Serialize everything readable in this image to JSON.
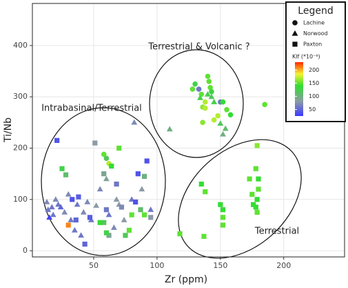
{
  "chart_data": {
    "type": "scatter",
    "x_label": "Zr (ppm)",
    "y_label": "Ti/Nb",
    "xlim": [
      1.6,
      248
    ],
    "ylim": [
      -12,
      482
    ],
    "xticks": [
      50,
      100,
      150,
      200
    ],
    "yticks": [
      0,
      100,
      200,
      300,
      400
    ],
    "grid": true,
    "annotations": [
      "Terrestrial & Volcanic ?",
      "Intrabasinal/Terrestrial",
      "Terrestrial"
    ],
    "legend": {
      "title": "Legend",
      "corner": "top-right"
    },
    "colorbar": {
      "title": "Klf (*10⁻⁶)",
      "lim": [
        25,
        230
      ],
      "ticks": [
        50,
        100,
        150,
        200
      ],
      "stops": [
        {
          "value": 25,
          "color": "#3a3aff"
        },
        {
          "value": 80,
          "color": "#8c9aa6"
        },
        {
          "value": 140,
          "color": "#33dd33"
        },
        {
          "value": 185,
          "color": "#f4f433"
        },
        {
          "value": 230,
          "color": "#ff2a00"
        }
      ]
    },
    "series": [
      {
        "name": "Lachine",
        "shape": "circle",
        "x": [
          58,
          62,
          60,
          130,
          133,
          135,
          136,
          138,
          140,
          141,
          142,
          143,
          145,
          148,
          150,
          152,
          155,
          158,
          185,
          128,
          136,
          138
        ],
        "values": [
          188,
          170,
          180,
          325,
          315,
          305,
          280,
          290,
          340,
          330,
          318,
          310,
          255,
          263,
          290,
          290,
          275,
          265,
          285,
          315,
          250,
          278
        ],
        "klf": [
          150,
          170,
          120,
          130,
          60,
          150,
          160,
          170,
          150,
          150,
          150,
          130,
          170,
          170,
          60,
          140,
          150,
          140,
          150,
          150,
          160,
          170
        ]
      },
      {
        "name": "Norwood",
        "shape": "triangle",
        "x": [
          13,
          14,
          15,
          17,
          18,
          20,
          22,
          24,
          27,
          30,
          32,
          35,
          37,
          40,
          42,
          45,
          48,
          52,
          55,
          60,
          62,
          66,
          68,
          70,
          74,
          80,
          82,
          88,
          95,
          110,
          140,
          143,
          145,
          150,
          152,
          154,
          134
        ],
        "values": [
          95,
          80,
          65,
          85,
          70,
          100,
          90,
          85,
          75,
          110,
          60,
          40,
          90,
          30,
          75,
          95,
          60,
          88,
          120,
          140,
          70,
          45,
          100,
          90,
          60,
          100,
          250,
          120,
          80,
          237,
          305,
          300,
          290,
          248,
          227,
          238,
          298
        ],
        "klf": [
          70,
          60,
          30,
          60,
          60,
          70,
          60,
          50,
          70,
          70,
          60,
          60,
          60,
          60,
          70,
          70,
          60,
          80,
          70,
          90,
          60,
          70,
          80,
          80,
          80,
          60,
          70,
          80,
          60,
          100,
          130,
          120,
          130,
          120,
          100,
          110,
          130
        ]
      },
      {
        "name": "Paxton",
        "shape": "square",
        "x": [
          21,
          25,
          28,
          30,
          33,
          38,
          36,
          43,
          47,
          51,
          55,
          58,
          60,
          62,
          64,
          68,
          70,
          72,
          75,
          78,
          80,
          83,
          85,
          87,
          90,
          90,
          92,
          95,
          60,
          58,
          118,
          135,
          137,
          138,
          150,
          152,
          152,
          152,
          173,
          175,
          176,
          178,
          178,
          179,
          180,
          179,
          180,
          179
        ],
        "values": [
          215,
          160,
          148,
          50,
          100,
          105,
          60,
          13,
          65,
          210,
          55,
          150,
          80,
          30,
          165,
          130,
          200,
          85,
          30,
          40,
          70,
          95,
          150,
          80,
          145,
          70,
          175,
          65,
          35,
          55,
          33,
          130,
          28,
          115,
          90,
          80,
          50,
          65,
          140,
          110,
          90,
          85,
          160,
          100,
          140,
          75,
          120,
          205
        ],
        "klf": [
          40,
          130,
          110,
          210,
          40,
          45,
          50,
          50,
          45,
          80,
          140,
          90,
          60,
          90,
          140,
          60,
          150,
          70,
          120,
          150,
          150,
          40,
          40,
          110,
          100,
          150,
          40,
          80,
          130,
          120,
          150,
          140,
          150,
          150,
          140,
          140,
          150,
          150,
          150,
          150,
          140,
          140,
          150,
          140,
          140,
          150,
          150,
          160
        ]
      }
    ]
  }
}
